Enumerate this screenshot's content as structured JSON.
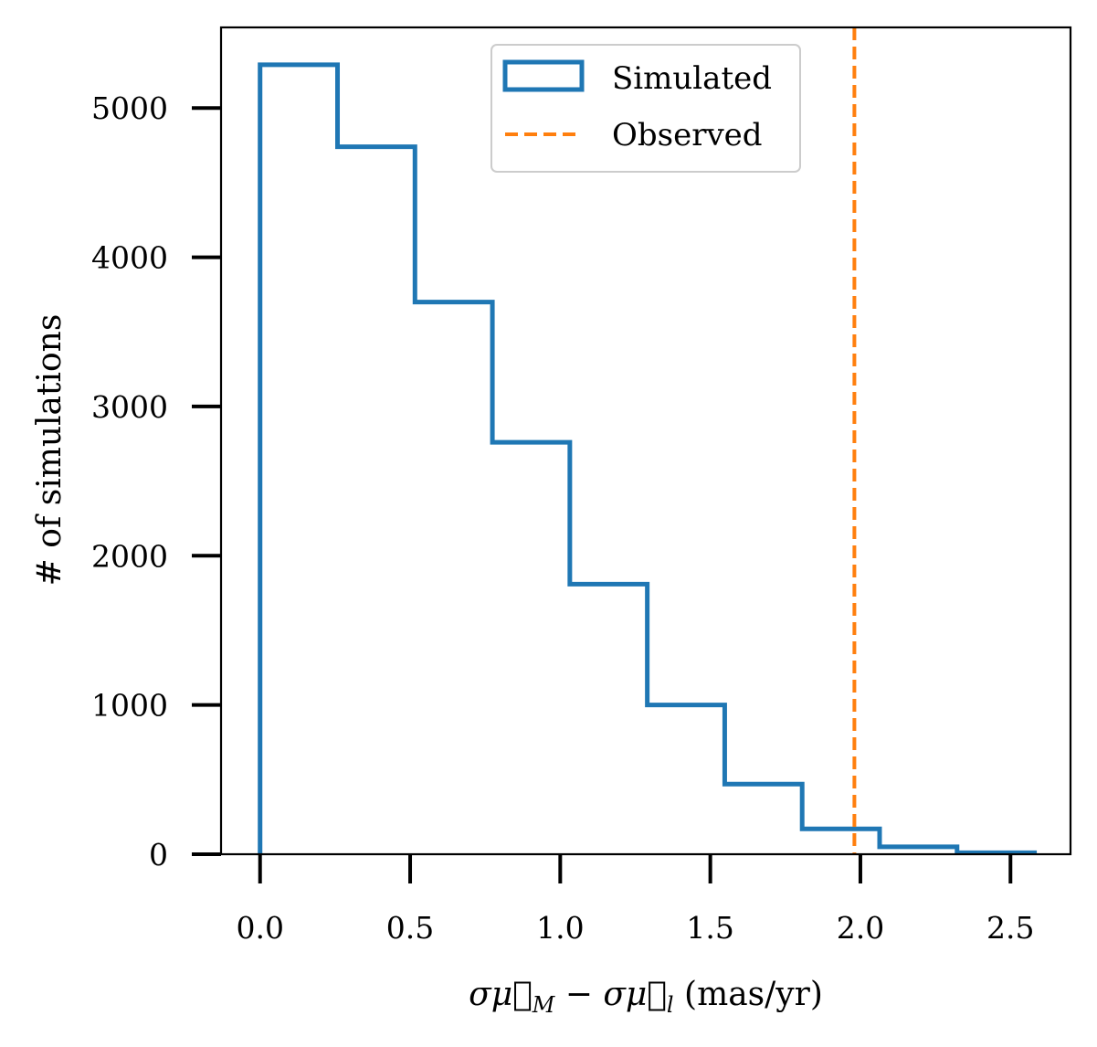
{
  "chart_data": {
    "type": "bar",
    "histogram": true,
    "bin_edges": [
      0.0,
      0.258,
      0.516,
      0.774,
      1.032,
      1.29,
      1.548,
      1.806,
      2.064,
      2.322,
      2.58
    ],
    "series": [
      {
        "name": "Simulated",
        "style": "step",
        "color": "#1f77b4",
        "values": [
          5290,
          4740,
          3700,
          2760,
          1810,
          1000,
          470,
          170,
          50,
          10
        ]
      }
    ],
    "reference_lines": [
      {
        "name": "Observed",
        "x": 1.98,
        "style": "dashed",
        "color": "#ff7f0e"
      }
    ],
    "xlabel": "σμ⃗_M − σμ⃗_l (mas/yr)",
    "ylabel": "# of simulations",
    "xlim": [
      -0.13,
      2.7
    ],
    "ylim": [
      0,
      5540
    ],
    "xticks": [
      0.0,
      0.5,
      1.0,
      1.5,
      2.0,
      2.5
    ],
    "xtick_labels": [
      "0.0",
      "0.5",
      "1.0",
      "1.5",
      "2.0",
      "2.5"
    ],
    "yticks": [
      0,
      1000,
      2000,
      3000,
      4000,
      5000
    ],
    "ytick_labels": [
      "0",
      "1000",
      "2000",
      "3000",
      "4000",
      "5000"
    ],
    "grid": false,
    "legend_position": "upper-center"
  }
}
